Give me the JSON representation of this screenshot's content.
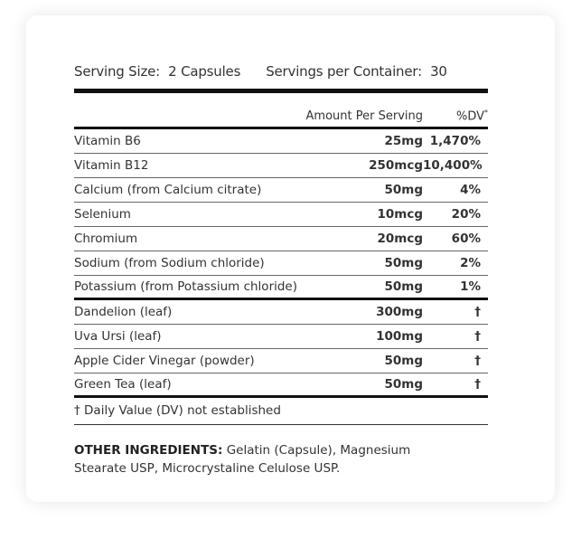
{
  "serving": {
    "size_label": "Serving Size:",
    "size_value": "2 Capsules",
    "per_container_label": "Servings per Container:",
    "per_container_value": "30"
  },
  "header": {
    "amount": "Amount Per Serving",
    "dv": "%DV",
    "dv_mark": "*"
  },
  "nutrients": [
    {
      "name": "Vitamin B6",
      "amount": "25mg",
      "dv": "1,470%"
    },
    {
      "name": "Vitamin B12",
      "amount": "250mcg",
      "dv": "10,400%"
    },
    {
      "name": "Calcium (from Calcium citrate)",
      "amount": "50mg",
      "dv": "4%"
    },
    {
      "name": "Selenium",
      "amount": "10mcg",
      "dv": "20%"
    },
    {
      "name": "Chromium",
      "amount": "20mcg",
      "dv": "60%"
    },
    {
      "name": "Sodium (from Sodium chloride)",
      "amount": "50mg",
      "dv": "2%"
    },
    {
      "name": "Potassium (from Potassium chloride)",
      "amount": "50mg",
      "dv": "1%"
    }
  ],
  "herbals": [
    {
      "name": "Dandelion (leaf)",
      "amount": "300mg",
      "dv": "†"
    },
    {
      "name": "Uva Ursi (leaf)",
      "amount": "100mg",
      "dv": "†"
    },
    {
      "name": "Apple Cider Vinegar (powder)",
      "amount": "50mg",
      "dv": "†"
    },
    {
      "name": "Green Tea (leaf)",
      "amount": "50mg",
      "dv": "†"
    }
  ],
  "footnote": "† Daily Value (DV) not established",
  "other": {
    "label": "OTHER INGREDIENTS:",
    "text": " Gelatin (Capsule), Magnesium Stearate USP, Microcrystaline Celulose USP."
  }
}
